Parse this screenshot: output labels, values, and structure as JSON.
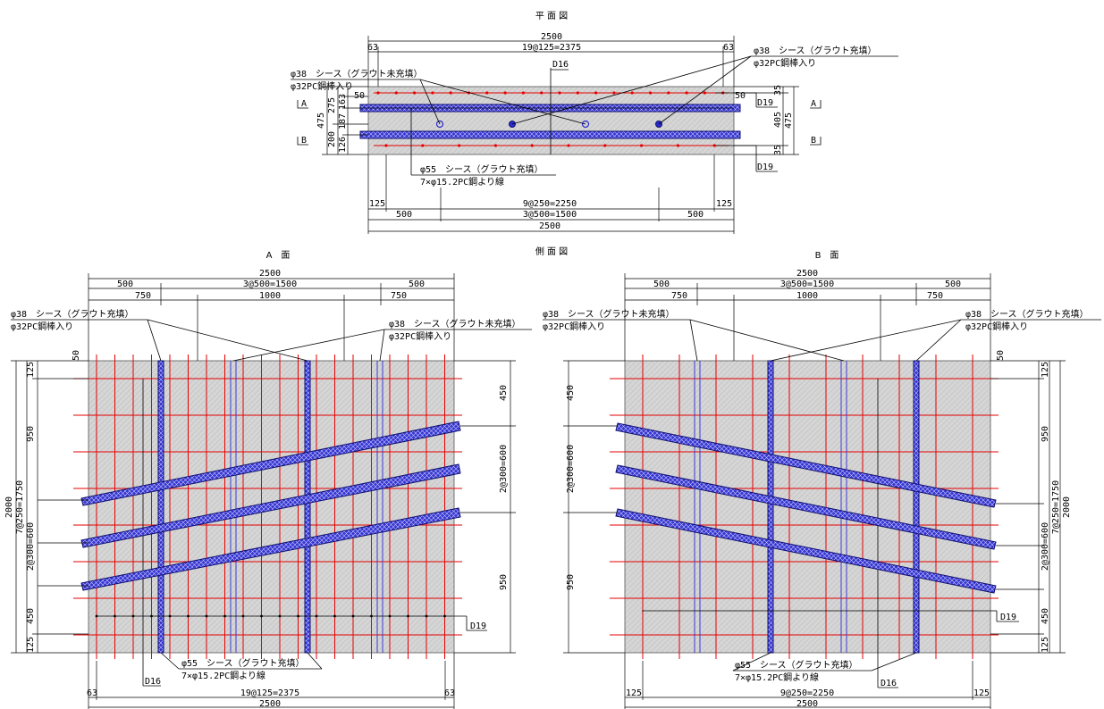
{
  "colors": {
    "rebar": "#e60000",
    "sheath": "#2a2ad0",
    "concrete": "#d9d9d9",
    "line": "#000000"
  },
  "plan": {
    "title": "平 面 図",
    "dims": {
      "total_top": "2500",
      "pitch_top": "19@125=2375",
      "end_left": "63",
      "end_right": "63",
      "pitch_bottom": "9@250=2250",
      "end_b_left": "125",
      "end_b_right": "125",
      "left_500": "500",
      "mid_1500": "3@500=1500",
      "right_500": "500",
      "total_bottom": "2500",
      "l_475": "475",
      "l_275": "275",
      "l_163": "163",
      "l_187": "187",
      "l_200": "200",
      "l_126": "126",
      "r_35a": "35",
      "r_475": "475",
      "r_405": "405",
      "r_35b": "35",
      "inner_50_left": "50",
      "inner_50_right": "50"
    },
    "labels": {
      "ungrouted_1": "φ38　シース（グラウト未充填）",
      "ungrouted_2": "φ32PC鋼棒入り",
      "grouted_1": "φ38　シース（グラウト充填）",
      "grouted_2": "φ32PC鋼棒入り",
      "d16": "D16",
      "d19a": "D19",
      "d19b": "D19",
      "strand_1": "φ55　シース（グラウト充填）",
      "strand_2": "7×φ15.2PC鋼より線"
    },
    "sections": {
      "a": "A",
      "b": "B"
    }
  },
  "side_title": "側 面 図",
  "face_a": {
    "title": "A　面",
    "dims": {
      "top_total": "2500",
      "top_500l": "500",
      "top_mid": "3@500=1500",
      "top_500r": "500",
      "top_750l": "750",
      "top_1000": "1000",
      "top_750r": "750",
      "left_2000": "2000",
      "left_7at250": "7@250=1750",
      "left_2at300": "2@300=600",
      "left_125t": "125",
      "left_950": "950",
      "left_450": "450",
      "left_125b": "125",
      "right_450": "450",
      "right_2at300": "2@300=600",
      "right_950": "950",
      "small_50": "50",
      "bot_63l": "63",
      "bot_pitch": "19@125=2375",
      "bot_63r": "63",
      "bot_total": "2500"
    },
    "labels": {
      "grouted_1": "φ38　シース（グラウト充填）",
      "grouted_2": "φ32PC鋼棒入り",
      "ungrouted_1": "φ38　シース（グラウト未充填）",
      "ungrouted_2": "φ32PC鋼棒入り",
      "strand_1": "φ55　シース（グラウト充填）",
      "strand_2": "7×φ15.2PC鋼より線",
      "d16": "D16",
      "d19": "D19"
    }
  },
  "face_b": {
    "title": "B　面",
    "dims": {
      "top_total": "2500",
      "top_500l": "500",
      "top_mid": "3@500=1500",
      "top_500r": "500",
      "top_750l": "750",
      "top_1000": "1000",
      "top_750r": "750",
      "right_2000": "2000",
      "right_7at250": "7@250=1750",
      "right_2at300": "2@300=600",
      "right_125t": "125",
      "right_950": "950",
      "right_450": "450",
      "right_125b": "125",
      "left_450": "450",
      "left_2at300": "2@300=600",
      "left_950": "950",
      "small_50": "50",
      "bot_125l": "125",
      "bot_pitch": "9@250=2250",
      "bot_125r": "125",
      "bot_total": "2500"
    },
    "labels": {
      "ungrouted_1": "φ38　シース（グラウト未充填）",
      "ungrouted_2": "φ32PC鋼棒入り",
      "grouted_1": "φ38　シース（グラウト充填）",
      "grouted_2": "φ32PC鋼棒入り",
      "strand_1": "φ55　シース（グラウト充填）",
      "strand_2": "7×φ15.2PC鋼より線",
      "d16": "D16",
      "d19": "D19"
    }
  }
}
